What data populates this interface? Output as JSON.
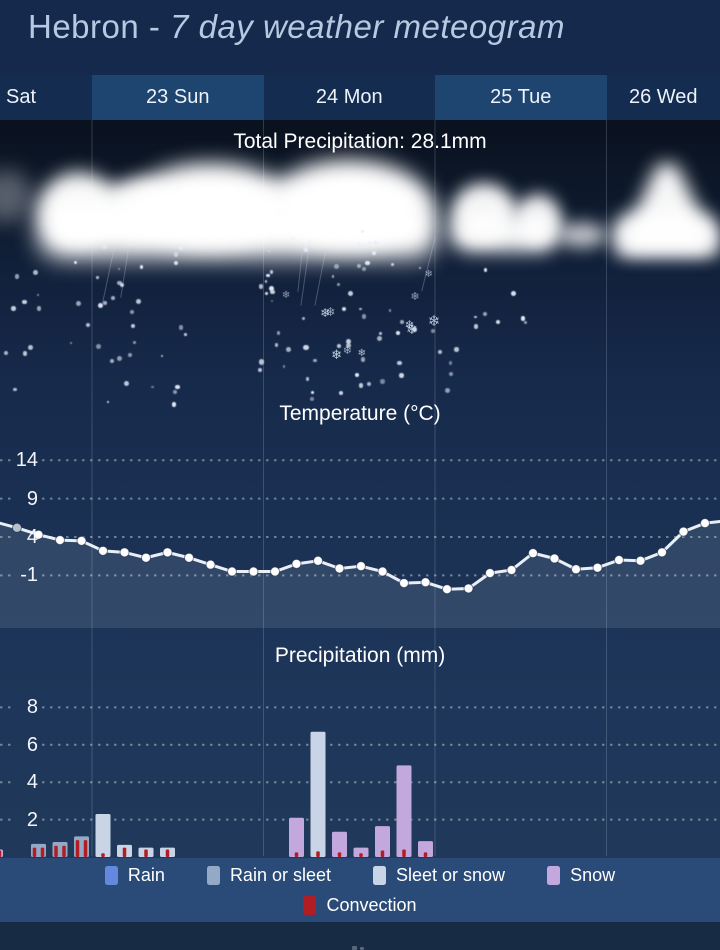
{
  "title": {
    "prefix": "Hebron - ",
    "italic": "7 day weather meteogram"
  },
  "days": [
    "Sat",
    "23 Sun",
    "24 Mon",
    "25 Tue",
    "26 Wed"
  ],
  "annotations": {
    "total_precipitation": "Total Precipitation: 28.1mm"
  },
  "legend": {
    "rows": [
      [
        {
          "key": "rain",
          "label": "Rain",
          "color": "#6488e0"
        },
        {
          "key": "rain_or_sleet",
          "label": "Rain or sleet",
          "color": "#93a9c6"
        },
        {
          "key": "sleet_or_snow",
          "label": "Sleet or snow",
          "color": "#c9d4e7"
        },
        {
          "key": "snow",
          "label": "Snow",
          "color": "#c3a8de"
        }
      ],
      [
        {
          "key": "convection",
          "label": "Convection",
          "color": "#b01d23"
        }
      ]
    ]
  },
  "colors": {
    "header_bg": "#14294b",
    "day_band_dark": "#132c50",
    "day_band_light": "#1e4470",
    "legend_band_bg": "#2a4b77",
    "footer_bg": "#182b45",
    "title_text": "#b6c9e2",
    "text": "#ffffff",
    "temp_line": "#e9eff7",
    "rain": "#6488e0",
    "rain_or_sleet": "#93a9c6",
    "sleet_or_snow": "#c9d4e7",
    "snow": "#c3a8de",
    "convection": "#b01d23"
  },
  "chart_data": [
    {
      "type": "line",
      "title": "Temperature (°C)",
      "ylabel": "°C",
      "yticks": [
        14,
        9,
        4,
        -1
      ],
      "x_step_hours": 3,
      "days": [
        "Sat",
        "23 Sun",
        "24 Mon",
        "25 Tue",
        "26 Wed"
      ],
      "values": [
        5.2,
        4.3,
        3.6,
        3.5,
        2.2,
        2.0,
        1.3,
        2.0,
        1.3,
        0.4,
        -0.5,
        -0.5,
        -0.5,
        0.5,
        0.9,
        -0.1,
        0.2,
        -0.5,
        -2.0,
        -1.9,
        -2.8,
        -2.7,
        -0.7,
        -0.3,
        1.9,
        1.2,
        -0.2,
        0.0,
        1.0,
        0.9,
        2.0,
        4.7,
        5.8
      ],
      "edge_values": {
        "left": 6.0,
        "right": 6.1
      },
      "grid": "dotted-horizontal"
    },
    {
      "type": "bar",
      "title": "Precipitation (mm)",
      "ylabel": "mm",
      "yticks": [
        8,
        6,
        4,
        2
      ],
      "total_mm": 28.1,
      "bars": [
        {
          "slot": -1,
          "type": "snow",
          "value": 0.4,
          "convection": [
            0.3,
            0.35
          ]
        },
        {
          "slot": 1,
          "type": "rain_or_sleet",
          "value": 0.7,
          "convection": [
            0.5,
            0.5
          ]
        },
        {
          "slot": 2,
          "type": "rain_or_sleet",
          "value": 0.8,
          "convection": [
            0.6,
            0.6
          ]
        },
        {
          "slot": 3,
          "type": "rain_or_sleet",
          "value": 1.1,
          "convection": [
            0.9,
            0.9
          ]
        },
        {
          "slot": 4,
          "type": "sleet_or_snow",
          "value": 2.3,
          "convection": [
            0.2
          ]
        },
        {
          "slot": 5,
          "type": "sleet_or_snow",
          "value": 0.65,
          "convection": [
            0.5
          ]
        },
        {
          "slot": 6,
          "type": "sleet_or_snow",
          "value": 0.5,
          "convection": [
            0.4
          ]
        },
        {
          "slot": 7,
          "type": "sleet_or_snow",
          "value": 0.5,
          "convection": [
            0.4
          ]
        },
        {
          "slot": 13,
          "type": "snow",
          "value": 2.1,
          "convection": [
            0.25
          ]
        },
        {
          "slot": 14,
          "type": "sleet_or_snow",
          "value": 6.7,
          "convection": [
            0.3
          ]
        },
        {
          "slot": 15,
          "type": "snow",
          "value": 1.35,
          "convection": [
            0.25
          ]
        },
        {
          "slot": 16,
          "type": "snow",
          "value": 0.5,
          "convection": [
            0.2
          ]
        },
        {
          "slot": 17,
          "type": "snow",
          "value": 1.65,
          "convection": [
            0.35
          ]
        },
        {
          "slot": 18,
          "type": "snow",
          "value": 4.9,
          "convection": [
            0.4
          ]
        },
        {
          "slot": 19,
          "type": "snow",
          "value": 0.85,
          "convection": [
            0.25
          ]
        }
      ]
    }
  ]
}
